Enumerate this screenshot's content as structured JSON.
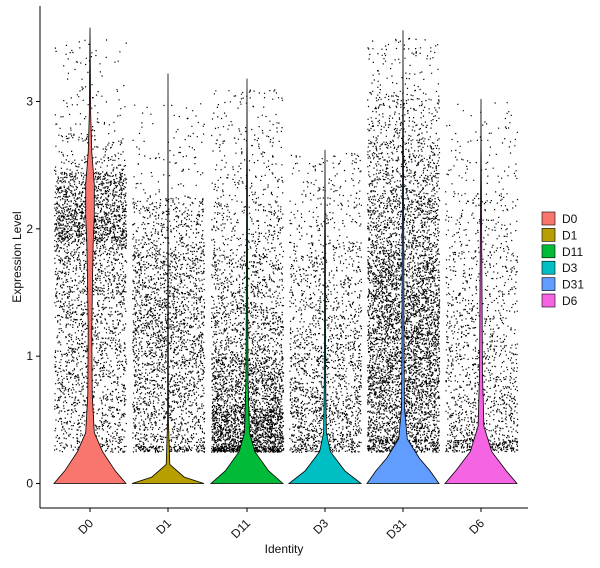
{
  "chart_data": {
    "type": "violin",
    "title": "",
    "xlabel": "Identity",
    "ylabel": "Expression Level",
    "ylim": [
      -0.2,
      3.75
    ],
    "yticks": [
      0,
      1,
      2,
      3
    ],
    "categories": [
      "D0",
      "D1",
      "D11",
      "D3",
      "D31",
      "D6"
    ],
    "colors": [
      "#F8766D",
      "#B79F00",
      "#00BA38",
      "#00BFC4",
      "#619CFF",
      "#F564E3"
    ],
    "legend_placement": "right",
    "grid": false,
    "violins": [
      {
        "name": "D0",
        "max": 3.58,
        "median": 0.0,
        "profile": [
          [
            0.0,
            1.0
          ],
          [
            0.1,
            0.7
          ],
          [
            0.25,
            0.35
          ],
          [
            0.4,
            0.12
          ],
          [
            0.7,
            0.06
          ],
          [
            1.2,
            0.05
          ],
          [
            1.6,
            0.07
          ],
          [
            1.9,
            0.09
          ],
          [
            2.1,
            0.12
          ],
          [
            2.35,
            0.12
          ],
          [
            2.6,
            0.05
          ],
          [
            2.9,
            0.02
          ],
          [
            3.3,
            0.008
          ],
          [
            3.58,
            0.0
          ]
        ]
      },
      {
        "name": "D1",
        "max": 3.22,
        "median": 0.0,
        "profile": [
          [
            0.0,
            1.0
          ],
          [
            0.05,
            0.45
          ],
          [
            0.15,
            0.05
          ],
          [
            0.5,
            0.01
          ],
          [
            1.5,
            0.005
          ],
          [
            2.5,
            0.004
          ],
          [
            3.22,
            0.0
          ]
        ]
      },
      {
        "name": "D11",
        "max": 3.18,
        "median": 0.0,
        "profile": [
          [
            0.0,
            1.0
          ],
          [
            0.1,
            0.6
          ],
          [
            0.25,
            0.22
          ],
          [
            0.4,
            0.07
          ],
          [
            0.8,
            0.03
          ],
          [
            1.4,
            0.02
          ],
          [
            2.0,
            0.015
          ],
          [
            2.4,
            0.01
          ],
          [
            2.8,
            0.004
          ],
          [
            3.18,
            0.0
          ]
        ]
      },
      {
        "name": "D3",
        "max": 2.62,
        "median": 0.0,
        "profile": [
          [
            0.0,
            1.0
          ],
          [
            0.1,
            0.55
          ],
          [
            0.25,
            0.15
          ],
          [
            0.4,
            0.04
          ],
          [
            0.8,
            0.02
          ],
          [
            1.3,
            0.015
          ],
          [
            1.9,
            0.01
          ],
          [
            2.3,
            0.004
          ],
          [
            2.62,
            0.0
          ]
        ]
      },
      {
        "name": "D31",
        "max": 3.56,
        "median": 0.0,
        "profile": [
          [
            0.0,
            1.0
          ],
          [
            0.1,
            0.75
          ],
          [
            0.2,
            0.45
          ],
          [
            0.35,
            0.12
          ],
          [
            0.6,
            0.04
          ],
          [
            1.0,
            0.03
          ],
          [
            1.5,
            0.025
          ],
          [
            2.0,
            0.02
          ],
          [
            2.6,
            0.01
          ],
          [
            3.1,
            0.004
          ],
          [
            3.56,
            0.0
          ]
        ]
      },
      {
        "name": "D6",
        "max": 3.02,
        "median": 0.0,
        "profile": [
          [
            0.0,
            1.0
          ],
          [
            0.1,
            0.7
          ],
          [
            0.25,
            0.3
          ],
          [
            0.45,
            0.08
          ],
          [
            0.9,
            0.04
          ],
          [
            1.4,
            0.03
          ],
          [
            1.9,
            0.02
          ],
          [
            2.3,
            0.01
          ],
          [
            2.7,
            0.004
          ],
          [
            3.02,
            0.0
          ]
        ]
      }
    ],
    "points": [
      {
        "name": "D0",
        "count": 3200,
        "distribution": [
          [
            0.35,
            0.03
          ],
          [
            0.7,
            0.1
          ],
          [
            1.1,
            0.12
          ],
          [
            1.5,
            0.12
          ],
          [
            1.9,
            0.16
          ],
          [
            2.2,
            0.25
          ],
          [
            2.45,
            0.15
          ],
          [
            2.75,
            0.04
          ],
          [
            3.1,
            0.02
          ],
          [
            3.5,
            0.01
          ]
        ]
      },
      {
        "name": "D1",
        "count": 2600,
        "distribution": [
          [
            0.3,
            0.06
          ],
          [
            0.7,
            0.16
          ],
          [
            1.1,
            0.2
          ],
          [
            1.5,
            0.22
          ],
          [
            1.9,
            0.2
          ],
          [
            2.25,
            0.12
          ],
          [
            2.6,
            0.02
          ],
          [
            3.0,
            0.02
          ]
        ]
      },
      {
        "name": "D11",
        "count": 3800,
        "distribution": [
          [
            0.3,
            0.1
          ],
          [
            0.6,
            0.3
          ],
          [
            1.0,
            0.24
          ],
          [
            1.4,
            0.14
          ],
          [
            1.8,
            0.1
          ],
          [
            2.2,
            0.06
          ],
          [
            2.6,
            0.03
          ],
          [
            3.1,
            0.03
          ]
        ]
      },
      {
        "name": "D3",
        "count": 1900,
        "distribution": [
          [
            0.35,
            0.1
          ],
          [
            0.7,
            0.26
          ],
          [
            1.1,
            0.24
          ],
          [
            1.5,
            0.16
          ],
          [
            1.9,
            0.14
          ],
          [
            2.3,
            0.06
          ],
          [
            2.6,
            0.04
          ]
        ]
      },
      {
        "name": "D31",
        "count": 5400,
        "distribution": [
          [
            0.35,
            0.06
          ],
          [
            0.7,
            0.14
          ],
          [
            1.1,
            0.18
          ],
          [
            1.5,
            0.2
          ],
          [
            1.9,
            0.16
          ],
          [
            2.3,
            0.12
          ],
          [
            2.7,
            0.08
          ],
          [
            3.1,
            0.04
          ],
          [
            3.5,
            0.02
          ]
        ]
      },
      {
        "name": "D6",
        "count": 1500,
        "distribution": [
          [
            0.35,
            0.16
          ],
          [
            0.7,
            0.22
          ],
          [
            1.1,
            0.2
          ],
          [
            1.5,
            0.16
          ],
          [
            1.9,
            0.12
          ],
          [
            2.3,
            0.08
          ],
          [
            2.7,
            0.04
          ],
          [
            3.0,
            0.02
          ]
        ]
      }
    ]
  }
}
